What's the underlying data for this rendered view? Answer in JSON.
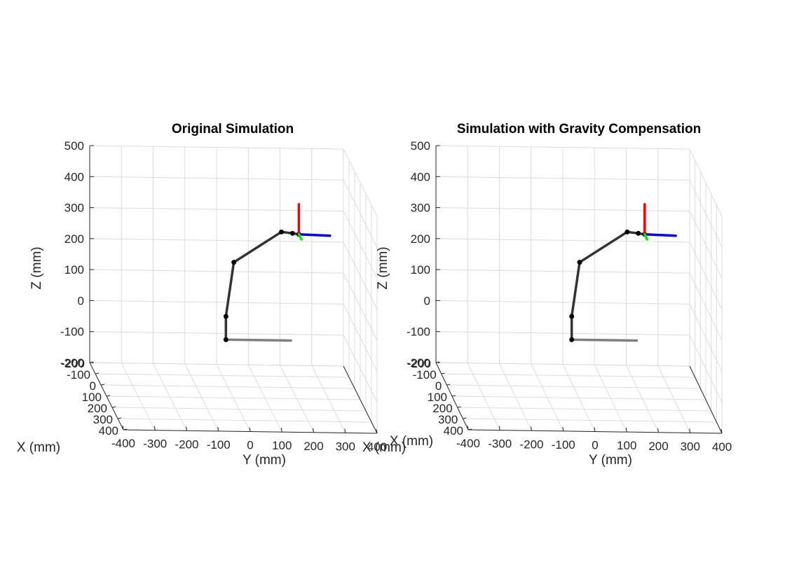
{
  "chart_data": [
    {
      "type": "line3d",
      "title": "Original Simulation",
      "xlabel": "X (mm)",
      "ylabel": "Y (mm)",
      "zlabel": "Z (mm)",
      "xlim": [
        -200,
        400
      ],
      "ylim": [
        -400,
        400
      ],
      "zlim": [
        -200,
        500
      ],
      "xticks": [
        -200,
        -100,
        0,
        100,
        200,
        300,
        400
      ],
      "yticks": [
        -400,
        -300,
        -200,
        -100,
        0,
        100,
        200,
        300,
        400
      ],
      "zticks": [
        -200,
        -100,
        0,
        100,
        200,
        300,
        400,
        500
      ],
      "grid": true,
      "series": [
        {
          "color": "#7f7f7f",
          "points": [
            [
              -5,
              -5,
              -50
            ],
            [
              -5,
              200,
              -50
            ]
          ]
        },
        {
          "color": "#333333",
          "markers": true,
          "points": [
            [
              -5,
              -5,
              -50
            ],
            [
              -5,
              -5,
              25
            ],
            [
              -5,
              20,
              200
            ],
            [
              -5,
              170,
              300
            ],
            [
              -5,
              205,
              296
            ],
            [
              -5,
              225,
              293
            ]
          ]
        },
        {
          "color": "#ff0000",
          "points": [
            [
              -5,
              225,
              293
            ],
            [
              -5,
              225,
              390
            ]
          ]
        },
        {
          "color": "#0000ff",
          "points": [
            [
              -5,
              225,
              293
            ],
            [
              -5,
              323,
              290
            ]
          ]
        },
        {
          "color": "#00ee00",
          "points": [
            [
              -5,
              225,
              293
            ],
            [
              40,
              225,
              293
            ]
          ]
        }
      ]
    },
    {
      "type": "line3d",
      "title": "Simulation with Gravity Compensation",
      "xlabel": "X (mm)",
      "ylabel": "Y (mm)",
      "zlabel": "Z (mm)",
      "xlim": [
        -200,
        400
      ],
      "ylim": [
        -400,
        400
      ],
      "zlim": [
        -200,
        500
      ],
      "xticks": [
        -200,
        -100,
        0,
        100,
        200,
        300,
        400
      ],
      "yticks": [
        -400,
        -300,
        -200,
        -100,
        0,
        100,
        200,
        300,
        400
      ],
      "zticks": [
        -200,
        -100,
        0,
        100,
        200,
        300,
        400,
        500
      ],
      "grid": true,
      "series": [
        {
          "color": "#7f7f7f",
          "points": [
            [
              -5,
              -5,
              -50
            ],
            [
              -5,
              200,
              -50
            ]
          ]
        },
        {
          "color": "#333333",
          "markers": true,
          "points": [
            [
              -5,
              -5,
              -50
            ],
            [
              -5,
              -5,
              25
            ],
            [
              -5,
              20,
              200
            ],
            [
              -5,
              170,
              300
            ],
            [
              -5,
              205,
              296
            ],
            [
              -5,
              225,
              293
            ]
          ]
        },
        {
          "color": "#ff0000",
          "points": [
            [
              -5,
              225,
              293
            ],
            [
              -5,
              225,
              390
            ]
          ]
        },
        {
          "color": "#0000ff",
          "points": [
            [
              -5,
              225,
              293
            ],
            [
              -5,
              323,
              290
            ]
          ]
        },
        {
          "color": "#00ee00",
          "points": [
            [
              -5,
              225,
              293
            ],
            [
              40,
              225,
              293
            ]
          ]
        }
      ]
    }
  ]
}
